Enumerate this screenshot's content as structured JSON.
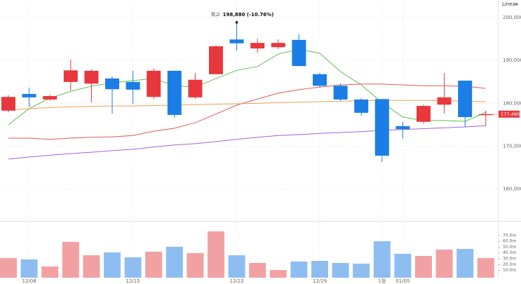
{
  "chart_data": {
    "type": "candlestick",
    "categories": [
      null,
      "12/08",
      null,
      null,
      null,
      null,
      "12/15",
      null,
      null,
      null,
      null,
      "12/22",
      null,
      null,
      null,
      "12/29",
      null,
      null,
      "1월",
      "01/05",
      null,
      null,
      null,
      null
    ],
    "open": [
      178300,
      182200,
      180900,
      185000,
      184600,
      185800,
      185000,
      181500,
      187600,
      181400,
      186800,
      194900,
      192800,
      193100,
      194800,
      186800,
      184100,
      180900,
      181000,
      174700,
      175700,
      179700,
      185300,
      177300
    ],
    "high": [
      181900,
      183700,
      182000,
      190200,
      187900,
      186300,
      187600,
      188200,
      187600,
      187100,
      193500,
      198880,
      195100,
      194900,
      196200,
      187100,
      184600,
      181200,
      181000,
      175700,
      179700,
      187100,
      185300,
      178300
    ],
    "low": [
      177900,
      179200,
      180600,
      183000,
      180200,
      177600,
      179900,
      181000,
      176600,
      181000,
      186800,
      192300,
      191800,
      192600,
      188700,
      183700,
      180600,
      177100,
      166300,
      171900,
      175300,
      177600,
      174500,
      174800
    ],
    "close": [
      181500,
      181400,
      181700,
      187700,
      187600,
      183300,
      183200,
      187600,
      177300,
      185500,
      193300,
      194000,
      194100,
      194100,
      188700,
      184100,
      180900,
      177800,
      167800,
      174000,
      179400,
      181400,
      176800,
      177490
    ],
    "up_color": "#e8383d",
    "down_color": "#1a7ee6",
    "moving_averages": [
      {
        "color": "#5cbf4f",
        "values": [
          175000,
          178800,
          181200,
          182800,
          184000,
          184800,
          185300,
          185800,
          184100,
          183800,
          185800,
          187700,
          188600,
          191500,
          192600,
          191700,
          187400,
          184300,
          180200,
          176800,
          176000,
          176000,
          175800,
          177900
        ]
      },
      {
        "color": "#e05a5a",
        "values": [
          171900,
          171900,
          171600,
          171900,
          172100,
          172200,
          172500,
          173500,
          174200,
          175500,
          177500,
          179600,
          181000,
          182400,
          183200,
          183800,
          184300,
          184500,
          184500,
          184300,
          184100,
          184100,
          184000,
          183500
        ]
      },
      {
        "color": "#f0a050",
        "values": [
          178400,
          178800,
          179000,
          179200,
          179300,
          179400,
          179400,
          179500,
          179600,
          179700,
          179800,
          179900,
          180000,
          180200,
          180300,
          180400,
          180500,
          180600,
          180700,
          180700,
          180700,
          180600,
          180500,
          180400
        ]
      },
      {
        "color": "#a363d6",
        "values": [
          167000,
          167500,
          167900,
          168300,
          168600,
          169000,
          169300,
          169800,
          170300,
          170600,
          171100,
          171600,
          172100,
          172500,
          172700,
          173000,
          173200,
          173400,
          173700,
          173900,
          174100,
          174300,
          174500,
          174800
        ]
      }
    ],
    "ylim": [
      152600,
      204100
    ],
    "yticks": [
      {
        "value": 160000,
        "label": "160,000"
      },
      {
        "value": 170000,
        "label": "170,000"
      },
      {
        "value": 180000,
        "label": "180,000"
      },
      {
        "value": 190000,
        "label": "190,000"
      },
      {
        "value": 200000,
        "label": "200,000"
      }
    ],
    "volume": {
      "values": [
        31.3,
        28.9,
        16.9,
        59.0,
        36.1,
        41.0,
        32.5,
        42.2,
        50.6,
        39.8,
        77.1,
        36.1,
        22.9,
        10.8,
        25.3,
        26.5,
        22.9,
        21.7,
        60.2,
        38.6,
        34.9,
        45.8,
        47.0,
        31.3
      ],
      "up_color": "#f2a1a3",
      "down_color": "#8ebdf2",
      "ylim": [
        0,
        89
      ],
      "yticks": [
        {
          "value": 10,
          "label": "10.0m"
        },
        {
          "value": 20,
          "label": "20.0m"
        },
        {
          "value": 30,
          "label": "30.0m"
        },
        {
          "value": 40,
          "label": "40.0m"
        },
        {
          "value": 50,
          "label": "50.0m"
        },
        {
          "value": 60,
          "label": "60.0m"
        },
        {
          "value": 70,
          "label": "70.0m"
        }
      ]
    },
    "scale_label": "Linear",
    "annotation": {
      "label": "최고",
      "text": "198,880 (-10.76%)"
    },
    "current_price_label": "177,490"
  }
}
